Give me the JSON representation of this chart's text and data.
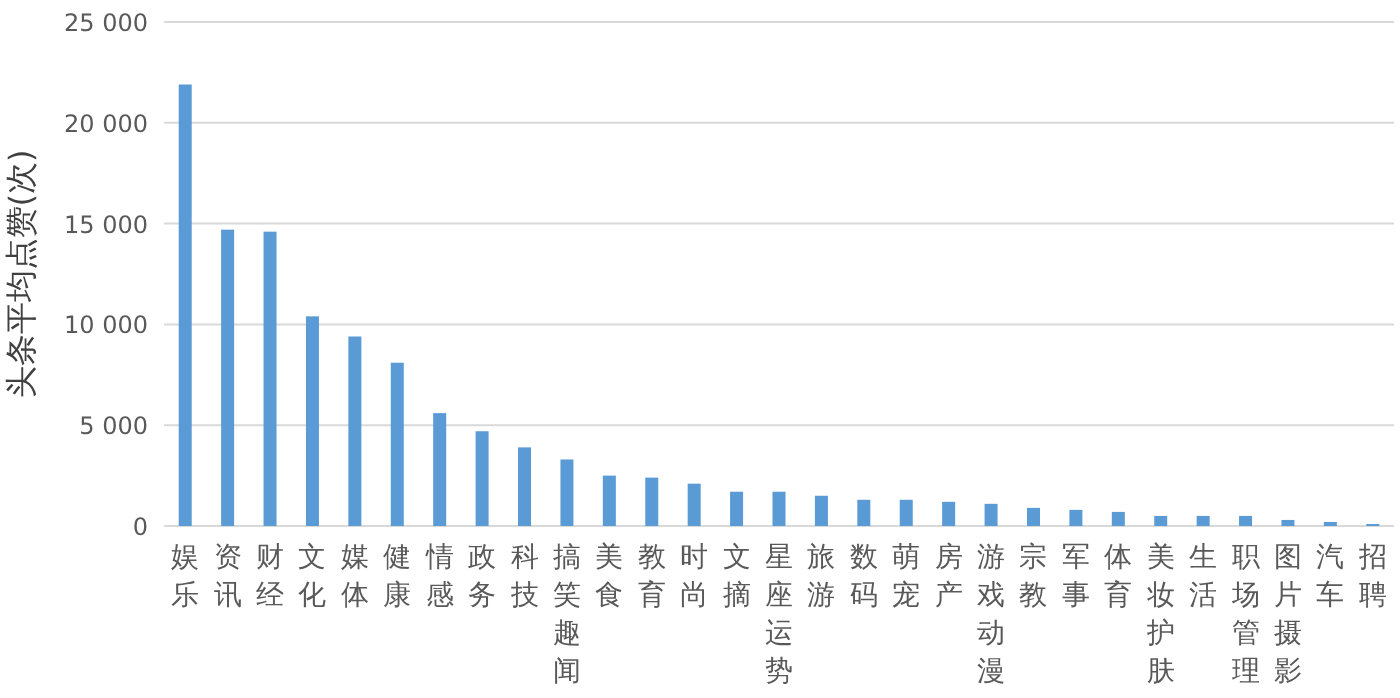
{
  "chart_data": {
    "type": "bar",
    "ylabel": "头条平均点赞(次)",
    "categories": [
      "娱乐",
      "资讯",
      "财经",
      "文化",
      "媒体",
      "健康",
      "情感",
      "政务",
      "科技",
      "搞笑趣闻",
      "美食",
      "教育",
      "时尚",
      "文摘",
      "星座运势",
      "旅游",
      "数码",
      "萌宠",
      "房产",
      "游戏动漫",
      "宗教",
      "军事",
      "体育",
      "美妆护肤",
      "生活",
      "职场管理",
      "图片摄影",
      "汽车",
      "招聘"
    ],
    "values": [
      21900,
      14700,
      14600,
      10400,
      9400,
      8100,
      5600,
      4700,
      3900,
      3300,
      2500,
      2400,
      2100,
      1700,
      1700,
      1500,
      1300,
      1300,
      1200,
      1100,
      900,
      800,
      700,
      500,
      500,
      500,
      300,
      200,
      100
    ],
    "color": "#5b9bd5",
    "ylim": [
      0,
      25000
    ],
    "yticks": [
      {
        "value": 0,
        "label": "0"
      },
      {
        "value": 5000,
        "label": "5 000"
      },
      {
        "value": 10000,
        "label": "10 000"
      },
      {
        "value": 15000,
        "label": "15 000"
      },
      {
        "value": 20000,
        "label": "20 000"
      },
      {
        "value": 25000,
        "label": "25 000"
      }
    ],
    "grid": "y"
  }
}
